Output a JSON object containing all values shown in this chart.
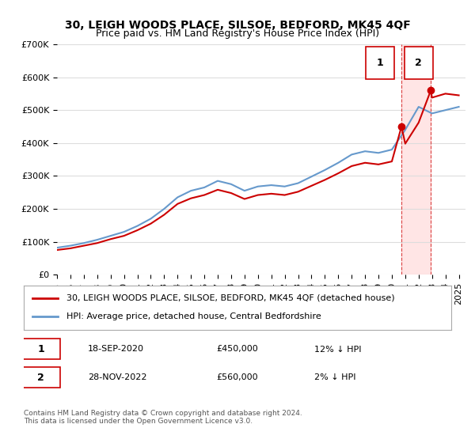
{
  "title": "30, LEIGH WOODS PLACE, SILSOE, BEDFORD, MK45 4QF",
  "subtitle": "Price paid vs. HM Land Registry's House Price Index (HPI)",
  "ylabel": "",
  "xlabel": "",
  "ylim": [
    0,
    700000
  ],
  "yticks": [
    0,
    100000,
    200000,
    300000,
    400000,
    500000,
    600000,
    700000
  ],
  "ytick_labels": [
    "£0",
    "£100K",
    "£200K",
    "£300K",
    "£400K",
    "£500K",
    "£600K",
    "£700K"
  ],
  "xlim_start": 1995.0,
  "xlim_end": 2025.5,
  "sale_dates": [
    2020.72,
    2022.91
  ],
  "sale_prices": [
    450000,
    560000
  ],
  "sale_labels": [
    "1",
    "2"
  ],
  "hpi_years": [
    1995,
    1996,
    1997,
    1998,
    1999,
    2000,
    2001,
    2002,
    2003,
    2004,
    2005,
    2006,
    2007,
    2008,
    2009,
    2010,
    2011,
    2012,
    2013,
    2014,
    2015,
    2016,
    2017,
    2018,
    2019,
    2020,
    2021,
    2022,
    2023,
    2024,
    2025
  ],
  "hpi_values": [
    82000,
    88000,
    96000,
    106000,
    118000,
    130000,
    148000,
    170000,
    200000,
    235000,
    255000,
    265000,
    285000,
    275000,
    255000,
    268000,
    272000,
    268000,
    278000,
    298000,
    318000,
    340000,
    365000,
    375000,
    370000,
    380000,
    440000,
    510000,
    490000,
    500000,
    510000
  ],
  "price_years": [
    1995,
    1996,
    1997,
    1998,
    1999,
    2000,
    2001,
    2002,
    2003,
    2004,
    2005,
    2006,
    2007,
    2008,
    2009,
    2010,
    2011,
    2012,
    2013,
    2014,
    2015,
    2016,
    2017,
    2018,
    2019,
    2020,
    2020.72,
    2021,
    2022,
    2022.91,
    2023,
    2024,
    2025
  ],
  "price_values": [
    75000,
    80000,
    88000,
    96000,
    108000,
    118000,
    135000,
    155000,
    182000,
    215000,
    232000,
    242000,
    258000,
    248000,
    230000,
    242000,
    246000,
    242000,
    252000,
    270000,
    288000,
    308000,
    330000,
    340000,
    335000,
    344000,
    450000,
    398000,
    462000,
    560000,
    538000,
    550000,
    545000
  ],
  "red_color": "#cc0000",
  "blue_color": "#6699cc",
  "shade_color": "#ffcccc",
  "grid_color": "#dddddd",
  "background_color": "#ffffff",
  "legend_label_red": "30, LEIGH WOODS PLACE, SILSOE, BEDFORD, MK45 4QF (detached house)",
  "legend_label_blue": "HPI: Average price, detached house, Central Bedfordshire",
  "annotation_1_date": "18-SEP-2020",
  "annotation_1_price": "£450,000",
  "annotation_1_hpi": "12% ↓ HPI",
  "annotation_2_date": "28-NOV-2022",
  "annotation_2_price": "£560,000",
  "annotation_2_hpi": "2% ↓ HPI",
  "copyright_text": "Contains HM Land Registry data © Crown copyright and database right 2024.\nThis data is licensed under the Open Government Licence v3.0.",
  "title_fontsize": 10,
  "subtitle_fontsize": 9,
  "tick_fontsize": 8,
  "legend_fontsize": 8,
  "annot_fontsize": 8
}
